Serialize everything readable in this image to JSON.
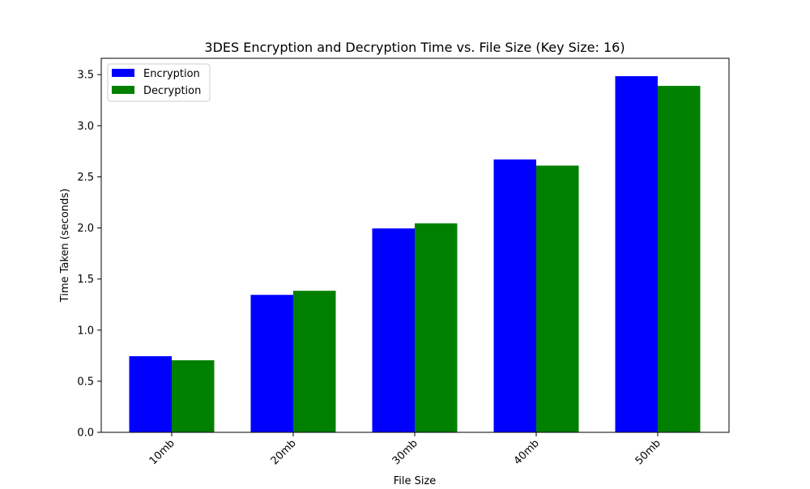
{
  "chart_data": {
    "type": "bar",
    "title": "3DES Encryption and Decryption Time vs. File Size (Key Size: 16)",
    "xlabel": "File Size",
    "ylabel": "Time Taken (seconds)",
    "categories": [
      "10mb",
      "20mb",
      "30mb",
      "40mb",
      "50mb"
    ],
    "series": [
      {
        "name": "Encryption",
        "color": "#0000ff",
        "values": [
          0.745,
          1.345,
          1.995,
          2.67,
          3.485
        ]
      },
      {
        "name": "Decryption",
        "color": "#008000",
        "values": [
          0.705,
          1.385,
          2.045,
          2.61,
          3.39
        ]
      }
    ],
    "ylim": [
      0,
      3.66
    ],
    "yticks": [
      0.0,
      0.5,
      1.0,
      1.5,
      2.0,
      2.5,
      3.0,
      3.5
    ],
    "ytick_labels": [
      "0.0",
      "0.5",
      "1.0",
      "1.5",
      "2.0",
      "2.5",
      "3.0",
      "3.5"
    ],
    "xtick_rotation": 45,
    "grid": false,
    "legend_position": "top-left"
  }
}
